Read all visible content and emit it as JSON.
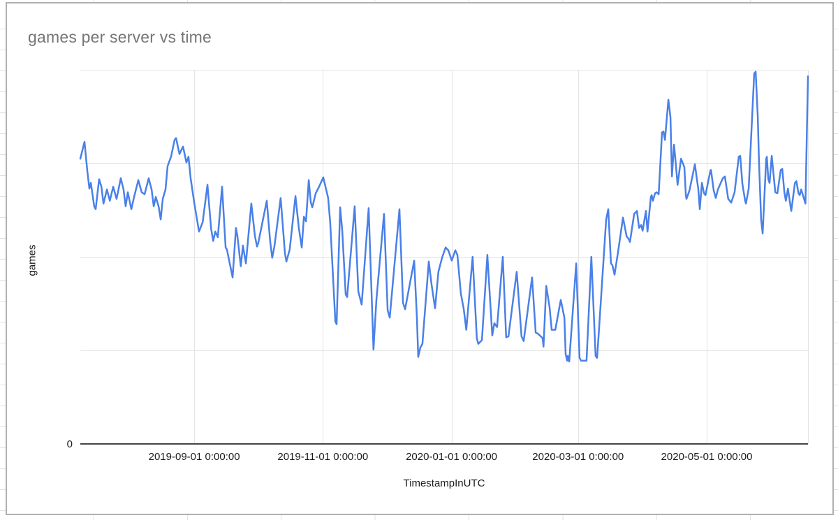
{
  "chart_data": {
    "type": "line",
    "title": "games per server vs time",
    "xlabel": "TimestampInUTC",
    "ylabel": "games",
    "series_color": "#4a80e8",
    "legend": "none",
    "grid": "on",
    "x_unit": "days since first plotted sample (approx 2019-07-09), estimated from tick gridlines",
    "x_domain_days": [
      0,
      345
    ],
    "x_ticks": [
      {
        "label": "2019-09-01 0:00:00",
        "day": 54
      },
      {
        "label": "2019-11-01 0:00:00",
        "day": 115
      },
      {
        "label": "2020-01-01 0:00:00",
        "day": 176
      },
      {
        "label": "2020-03-01 0:00:00",
        "day": 236
      },
      {
        "label": "2020-05-01 0:00:00",
        "day": 297
      }
    ],
    "y_axis": {
      "tick_labels": [
        "0"
      ],
      "ylim_units": [
        0,
        4
      ],
      "gridline_units": [
        1,
        2,
        3,
        4
      ],
      "note": "only the 0 tick is labeled; values below are in unlabeled gridline units"
    },
    "points": [
      [
        0,
        3.05
      ],
      [
        2,
        3.23
      ],
      [
        3.3,
        2.92
      ],
      [
        4.3,
        2.73
      ],
      [
        5,
        2.79
      ],
      [
        6.6,
        2.54
      ],
      [
        7.3,
        2.51
      ],
      [
        8.9,
        2.83
      ],
      [
        10,
        2.75
      ],
      [
        11,
        2.57
      ],
      [
        12.6,
        2.72
      ],
      [
        14,
        2.6
      ],
      [
        15.6,
        2.75
      ],
      [
        17.2,
        2.62
      ],
      [
        19.2,
        2.84
      ],
      [
        20.5,
        2.72
      ],
      [
        21.5,
        2.54
      ],
      [
        22.5,
        2.69
      ],
      [
        24.2,
        2.51
      ],
      [
        25.5,
        2.64
      ],
      [
        27.5,
        2.82
      ],
      [
        29.1,
        2.69
      ],
      [
        30.5,
        2.67
      ],
      [
        32.4,
        2.84
      ],
      [
        33.8,
        2.72
      ],
      [
        34.8,
        2.54
      ],
      [
        35.8,
        2.64
      ],
      [
        37.1,
        2.54
      ],
      [
        38.1,
        2.4
      ],
      [
        39.1,
        2.62
      ],
      [
        40.4,
        2.72
      ],
      [
        41.4,
        2.97
      ],
      [
        43,
        3.07
      ],
      [
        44.7,
        3.25
      ],
      [
        45.4,
        3.27
      ],
      [
        47,
        3.1
      ],
      [
        48.7,
        3.18
      ],
      [
        50.3,
        3.01
      ],
      [
        51.3,
        3.07
      ],
      [
        52.3,
        2.84
      ],
      [
        54,
        2.58
      ],
      [
        56.3,
        2.27
      ],
      [
        58,
        2.37
      ],
      [
        60.3,
        2.77
      ],
      [
        62,
        2.3
      ],
      [
        63,
        2.17
      ],
      [
        64,
        2.27
      ],
      [
        65.2,
        2.21
      ],
      [
        67.2,
        2.75
      ],
      [
        68.9,
        2.1
      ],
      [
        69.5,
        2.08
      ],
      [
        72.2,
        1.78
      ],
      [
        73.8,
        2.31
      ],
      [
        74.5,
        2.22
      ],
      [
        76.1,
        1.9
      ],
      [
        77.1,
        2.12
      ],
      [
        78.5,
        1.93
      ],
      [
        81.1,
        2.57
      ],
      [
        82.8,
        2.22
      ],
      [
        83.8,
        2.11
      ],
      [
        84.4,
        2.15
      ],
      [
        88.4,
        2.6
      ],
      [
        90,
        2.17
      ],
      [
        91,
        1.99
      ],
      [
        92,
        2.11
      ],
      [
        95,
        2.63
      ],
      [
        97,
        2.04
      ],
      [
        97.7,
        1.95
      ],
      [
        99.3,
        2.08
      ],
      [
        102,
        2.65
      ],
      [
        103.6,
        2.31
      ],
      [
        105,
        2.1
      ],
      [
        106,
        2.43
      ],
      [
        107,
        2.38
      ],
      [
        108.3,
        2.82
      ],
      [
        109.3,
        2.58
      ],
      [
        110,
        2.53
      ],
      [
        111.6,
        2.68
      ],
      [
        113.2,
        2.75
      ],
      [
        115.2,
        2.85
      ],
      [
        117.5,
        2.63
      ],
      [
        118.5,
        2.36
      ],
      [
        120.9,
        1.31
      ],
      [
        121.5,
        1.28
      ],
      [
        123.2,
        2.53
      ],
      [
        124.2,
        2.28
      ],
      [
        125.8,
        1.6
      ],
      [
        126.5,
        1.57
      ],
      [
        130.1,
        2.54
      ],
      [
        131.8,
        1.63
      ],
      [
        133.4,
        1.49
      ],
      [
        136.7,
        2.52
      ],
      [
        138.4,
        1.41
      ],
      [
        139,
        1.01
      ],
      [
        140.4,
        1.54
      ],
      [
        144,
        2.46
      ],
      [
        145.7,
        1.43
      ],
      [
        146.7,
        1.35
      ],
      [
        151.3,
        2.51
      ],
      [
        153,
        1.51
      ],
      [
        154,
        1.44
      ],
      [
        158.3,
        1.96
      ],
      [
        159.6,
        1.35
      ],
      [
        160.2,
        0.93
      ],
      [
        161.2,
        1.03
      ],
      [
        162.2,
        1.07
      ],
      [
        165.2,
        1.95
      ],
      [
        166.5,
        1.71
      ],
      [
        168.2,
        1.45
      ],
      [
        169.8,
        1.84
      ],
      [
        171.5,
        1.99
      ],
      [
        173.2,
        2.1
      ],
      [
        174.5,
        2.07
      ],
      [
        176.1,
        1.96
      ],
      [
        177.8,
        2.07
      ],
      [
        178.8,
        2.02
      ],
      [
        180.4,
        1.61
      ],
      [
        181.8,
        1.44
      ],
      [
        183,
        1.22
      ],
      [
        186,
        2.0
      ],
      [
        188,
        1.13
      ],
      [
        188.7,
        1.07
      ],
      [
        190.4,
        1.11
      ],
      [
        193,
        2.02
      ],
      [
        195.3,
        1.16
      ],
      [
        196.3,
        1.29
      ],
      [
        197.6,
        1.25
      ],
      [
        200.3,
        2.0
      ],
      [
        201.9,
        1.14
      ],
      [
        203,
        1.15
      ],
      [
        206.9,
        1.84
      ],
      [
        209.2,
        1.15
      ],
      [
        210.2,
        1.1
      ],
      [
        214.2,
        1.78
      ],
      [
        215.9,
        1.19
      ],
      [
        216.9,
        1.18
      ],
      [
        217.9,
        1.16
      ],
      [
        219.2,
        1.13
      ],
      [
        219.6,
        1.04
      ],
      [
        220.9,
        1.69
      ],
      [
        222.5,
        1.46
      ],
      [
        223.5,
        1.22
      ],
      [
        225.2,
        1.22
      ],
      [
        227.8,
        1.54
      ],
      [
        229.5,
        1.35
      ],
      [
        230.1,
        0.96
      ],
      [
        230.8,
        0.89
      ],
      [
        231.1,
        0.94
      ],
      [
        231.8,
        0.88
      ],
      [
        235.1,
        1.93
      ],
      [
        236.7,
        0.92
      ],
      [
        237.4,
        0.89
      ],
      [
        239,
        0.89
      ],
      [
        240,
        0.89
      ],
      [
        242.3,
        2.0
      ],
      [
        244.3,
        0.94
      ],
      [
        245,
        0.92
      ],
      [
        246,
        1.25
      ],
      [
        249.3,
        2.4
      ],
      [
        250.3,
        2.51
      ],
      [
        251.6,
        1.93
      ],
      [
        252.3,
        1.91
      ],
      [
        253.3,
        1.81
      ],
      [
        255,
        2.06
      ],
      [
        257.3,
        2.42
      ],
      [
        259,
        2.22
      ],
      [
        260,
        2.19
      ],
      [
        260.6,
        2.16
      ],
      [
        262.6,
        2.46
      ],
      [
        263.9,
        2.49
      ],
      [
        264.9,
        2.31
      ],
      [
        265.9,
        2.34
      ],
      [
        266.6,
        2.28
      ],
      [
        268.2,
        2.49
      ],
      [
        268.9,
        2.27
      ],
      [
        270.5,
        2.64
      ],
      [
        270.9,
        2.66
      ],
      [
        271.5,
        2.6
      ],
      [
        272.5,
        2.68
      ],
      [
        273.2,
        2.69
      ],
      [
        274.2,
        2.67
      ],
      [
        275.8,
        3.33
      ],
      [
        276.5,
        3.34
      ],
      [
        277.2,
        3.25
      ],
      [
        278.8,
        3.68
      ],
      [
        279.8,
        3.49
      ],
      [
        280.5,
        2.86
      ],
      [
        281.5,
        3.2
      ],
      [
        282.2,
        3.03
      ],
      [
        283.2,
        2.77
      ],
      [
        284.8,
        3.05
      ],
      [
        286.4,
        2.96
      ],
      [
        287.1,
        2.66
      ],
      [
        287.4,
        2.62
      ],
      [
        288.8,
        2.71
      ],
      [
        291.4,
        2.99
      ],
      [
        292.4,
        2.82
      ],
      [
        293,
        2.73
      ],
      [
        293.7,
        2.51
      ],
      [
        294.7,
        2.79
      ],
      [
        295.7,
        2.68
      ],
      [
        296.4,
        2.66
      ],
      [
        298.7,
        2.92
      ],
      [
        299,
        2.93
      ],
      [
        300.3,
        2.71
      ],
      [
        301.3,
        2.63
      ],
      [
        302.3,
        2.72
      ],
      [
        304.6,
        2.84
      ],
      [
        305.6,
        2.86
      ],
      [
        307.2,
        2.62
      ],
      [
        308.6,
        2.58
      ],
      [
        310.2,
        2.69
      ],
      [
        312.2,
        3.07
      ],
      [
        312.9,
        3.08
      ],
      [
        313.9,
        2.78
      ],
      [
        315.2,
        2.6
      ],
      [
        315.6,
        2.57
      ],
      [
        316.9,
        2.73
      ],
      [
        319.5,
        3.96
      ],
      [
        320.2,
        3.98
      ],
      [
        321.2,
        3.5
      ],
      [
        321.8,
        3.01
      ],
      [
        322.8,
        2.4
      ],
      [
        323.5,
        2.25
      ],
      [
        325.2,
        3.05
      ],
      [
        325.5,
        3.07
      ],
      [
        326.2,
        2.83
      ],
      [
        326.8,
        2.79
      ],
      [
        327.8,
        3.08
      ],
      [
        329.5,
        2.69
      ],
      [
        330.5,
        2.68
      ],
      [
        332.1,
        2.93
      ],
      [
        332.8,
        2.94
      ],
      [
        333.8,
        2.69
      ],
      [
        334.5,
        2.6
      ],
      [
        335.5,
        2.73
      ],
      [
        336.8,
        2.53
      ],
      [
        337.1,
        2.49
      ],
      [
        338.8,
        2.79
      ],
      [
        339.5,
        2.81
      ],
      [
        340.5,
        2.68
      ],
      [
        341.1,
        2.66
      ],
      [
        341.8,
        2.72
      ],
      [
        343.4,
        2.6
      ],
      [
        343.8,
        2.57
      ],
      [
        345,
        3.93
      ]
    ]
  }
}
